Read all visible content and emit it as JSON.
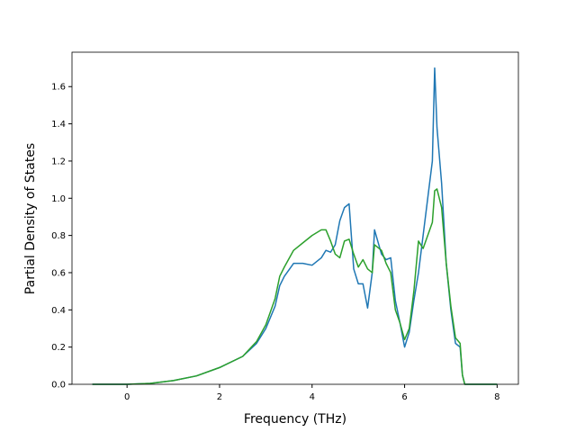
{
  "chart_data": {
    "type": "line",
    "xlabel": "Frequency (THz)",
    "ylabel": "Partial Density of States",
    "x": [
      -0.75,
      0,
      0.5,
      1,
      1.5,
      2,
      2.5,
      2.8,
      3.0,
      3.2,
      3.3,
      3.4,
      3.6,
      3.8,
      4.0,
      4.2,
      4.3,
      4.4,
      4.5,
      4.6,
      4.7,
      4.8,
      4.9,
      5.0,
      5.1,
      5.2,
      5.3,
      5.35,
      5.5,
      5.6,
      5.7,
      5.8,
      5.9,
      6.0,
      6.1,
      6.2,
      6.3,
      6.4,
      6.5,
      6.6,
      6.65,
      6.7,
      6.8,
      6.9,
      7.0,
      7.1,
      7.2,
      7.25,
      7.3,
      8.0
    ],
    "series": [
      {
        "color": "#1f77b4",
        "values": [
          0,
          0,
          0.005,
          0.02,
          0.045,
          0.09,
          0.15,
          0.22,
          0.3,
          0.42,
          0.53,
          0.58,
          0.65,
          0.65,
          0.64,
          0.68,
          0.72,
          0.71,
          0.75,
          0.88,
          0.95,
          0.97,
          0.62,
          0.54,
          0.54,
          0.41,
          0.6,
          0.83,
          0.7,
          0.67,
          0.68,
          0.45,
          0.33,
          0.2,
          0.28,
          0.45,
          0.6,
          0.8,
          1.0,
          1.2,
          1.7,
          1.38,
          1.08,
          0.65,
          0.4,
          0.22,
          0.2,
          0.05,
          0,
          0
        ]
      },
      {
        "color": "#2ca02c",
        "values": [
          0,
          0,
          0.005,
          0.02,
          0.045,
          0.09,
          0.15,
          0.23,
          0.32,
          0.46,
          0.58,
          0.63,
          0.72,
          0.76,
          0.8,
          0.83,
          0.83,
          0.77,
          0.7,
          0.68,
          0.77,
          0.78,
          0.7,
          0.63,
          0.67,
          0.62,
          0.6,
          0.75,
          0.72,
          0.65,
          0.6,
          0.4,
          0.33,
          0.24,
          0.3,
          0.5,
          0.77,
          0.73,
          0.8,
          0.87,
          1.04,
          1.05,
          0.95,
          0.65,
          0.42,
          0.25,
          0.22,
          0.05,
          0,
          0
        ]
      }
    ],
    "xlim": [
      -1.19,
      8.46
    ],
    "ylim": [
      0,
      1.785
    ],
    "xticks": [
      0,
      2,
      4,
      6,
      8
    ],
    "yticks": [
      {
        "value": 0,
        "label": "0.0"
      },
      {
        "value": 0.2,
        "label": "0.2"
      },
      {
        "value": 0.4,
        "label": "0.4"
      },
      {
        "value": 0.6,
        "label": "0.6"
      },
      {
        "value": 0.8,
        "label": "0.8"
      },
      {
        "value": 1.0,
        "label": "1.0"
      },
      {
        "value": 1.2,
        "label": "1.2"
      },
      {
        "value": 1.4,
        "label": "1.4"
      },
      {
        "value": 1.6,
        "label": "1.6"
      }
    ],
    "grid": false
  }
}
